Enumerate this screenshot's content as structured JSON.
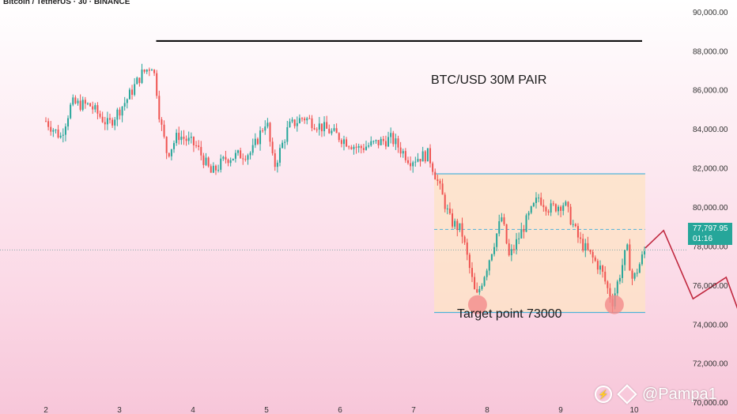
{
  "header": {
    "symbol": "Bitcoin / TetherUS · 30 · BINANCE"
  },
  "price_tag": {
    "price": "77,797.95",
    "countdown": "01:16",
    "color": "#26a69a"
  },
  "annotations": {
    "title": "BTC/USD 30M PAIR",
    "target": "Target point 73000"
  },
  "watermark": {
    "handle": "@Pampa1"
  },
  "chart_data": {
    "type": "candlestick",
    "y_ticks": [
      "90,000.00",
      "88,000.00",
      "86,000.00",
      "84,000.00",
      "82,000.00",
      "80,000.00",
      "78,000.00",
      "76,000.00",
      "74,000.00",
      "72,000.00",
      "70,000.00"
    ],
    "x_ticks": [
      "2",
      "3",
      "4",
      "5",
      "6",
      "7",
      "8",
      "9",
      "10"
    ],
    "ylim": [
      69400,
      90600
    ],
    "grid": false,
    "path": [
      {
        "x": 0.0,
        "y": 84400
      },
      {
        "x": 0.2,
        "y": 83600
      },
      {
        "x": 0.35,
        "y": 85300
      },
      {
        "x": 0.6,
        "y": 85200
      },
      {
        "x": 0.85,
        "y": 84200
      },
      {
        "x": 1.1,
        "y": 85500
      },
      {
        "x": 1.3,
        "y": 86800
      },
      {
        "x": 1.45,
        "y": 87300
      },
      {
        "x": 1.5,
        "y": 86200
      },
      {
        "x": 1.55,
        "y": 84500
      },
      {
        "x": 1.65,
        "y": 82700
      },
      {
        "x": 1.8,
        "y": 83700
      },
      {
        "x": 2.05,
        "y": 83100
      },
      {
        "x": 2.25,
        "y": 81700
      },
      {
        "x": 2.45,
        "y": 82500
      },
      {
        "x": 2.8,
        "y": 82800
      },
      {
        "x": 3.0,
        "y": 84500
      },
      {
        "x": 3.1,
        "y": 82000
      },
      {
        "x": 3.3,
        "y": 84100
      },
      {
        "x": 3.5,
        "y": 84600
      },
      {
        "x": 3.85,
        "y": 83900
      },
      {
        "x": 4.25,
        "y": 83000
      },
      {
        "x": 4.7,
        "y": 83500
      },
      {
        "x": 4.95,
        "y": 82400
      },
      {
        "x": 5.2,
        "y": 82700
      },
      {
        "x": 5.3,
        "y": 81600
      },
      {
        "x": 5.5,
        "y": 79300
      },
      {
        "x": 5.65,
        "y": 78800
      },
      {
        "x": 5.85,
        "y": 75300
      },
      {
        "x": 6.0,
        "y": 77000
      },
      {
        "x": 6.2,
        "y": 79500
      },
      {
        "x": 6.3,
        "y": 77400
      },
      {
        "x": 6.55,
        "y": 79400
      },
      {
        "x": 6.7,
        "y": 80500
      },
      {
        "x": 6.85,
        "y": 79900
      },
      {
        "x": 7.05,
        "y": 80200
      },
      {
        "x": 7.25,
        "y": 78300
      },
      {
        "x": 7.55,
        "y": 76800
      },
      {
        "x": 7.7,
        "y": 75100
      },
      {
        "x": 7.9,
        "y": 77900
      },
      {
        "x": 7.98,
        "y": 76200
      },
      {
        "x": 8.15,
        "y": 77800
      }
    ],
    "levels": {
      "resistance": 88500,
      "range_top": 81700,
      "range_bottom": 74600,
      "current": 77798
    },
    "range_box": {
      "x_start": 5.28,
      "x_end": 8.15,
      "top": 81700,
      "bottom": 74600
    },
    "highlight_points": [
      {
        "x": 5.87,
        "y": 75000
      },
      {
        "x": 7.73,
        "y": 75000
      }
    ],
    "projection": [
      {
        "x": 8.15,
        "y": 77900
      },
      {
        "x": 8.4,
        "y": 78800
      },
      {
        "x": 8.8,
        "y": 75300
      },
      {
        "x": 9.25,
        "y": 76400
      },
      {
        "x": 9.55,
        "y": 73300
      }
    ],
    "colors": {
      "up": "#26a69a",
      "down": "#ef5350",
      "resistance": "#000000",
      "range_line": "#4fb3d9",
      "box_fill": "#fde3c4",
      "projection": "#c0283f",
      "highlight": "#f28b8b"
    }
  }
}
